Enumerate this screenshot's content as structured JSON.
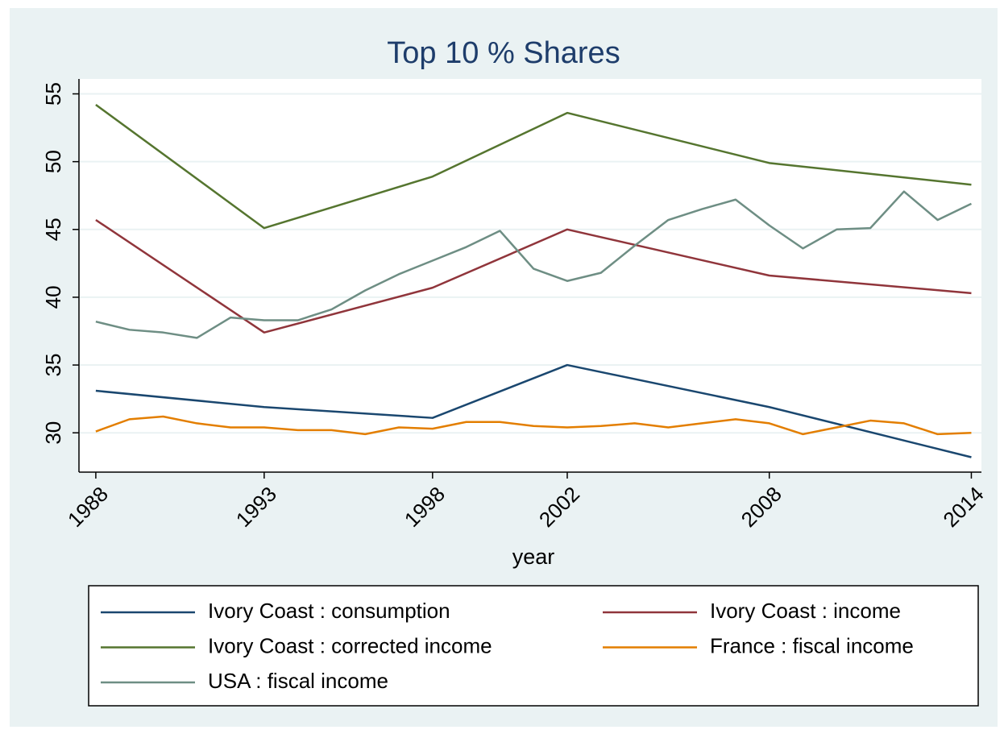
{
  "chart_data": {
    "type": "line",
    "title": "Top 10 % Shares",
    "x_label": "year",
    "xlim": [
      1987.5,
      2014.3
    ],
    "ylim": [
      27.1,
      56.1
    ],
    "xticks": [
      1988,
      1993,
      1998,
      2002,
      2008,
      2014
    ],
    "yticks": [
      30,
      35,
      40,
      45,
      50,
      55
    ],
    "grid": true,
    "series": [
      {
        "name": "Ivory Coast : consumption",
        "color": "#1a476f",
        "x": [
          1988,
          1993,
          1998,
          2002,
          2008,
          2014
        ],
        "values": [
          33.1,
          31.9,
          31.1,
          35.0,
          31.9,
          28.2
        ]
      },
      {
        "name": "Ivory Coast : income",
        "color": "#90353b",
        "x": [
          1988,
          1993,
          1998,
          2002,
          2008,
          2014
        ],
        "values": [
          45.7,
          37.4,
          40.7,
          45.0,
          41.6,
          40.3
        ]
      },
      {
        "name": "Ivory Coast : corrected income",
        "color": "#55752f",
        "x": [
          1988,
          1993,
          1998,
          2002,
          2008,
          2014
        ],
        "values": [
          54.2,
          45.1,
          48.9,
          53.6,
          49.9,
          48.3
        ]
      },
      {
        "name": "France : fiscal income",
        "color": "#e37e00",
        "x": [
          1988,
          1989,
          1990,
          1991,
          1992,
          1993,
          1994,
          1995,
          1996,
          1997,
          1998,
          1999,
          2000,
          2001,
          2002,
          2003,
          2004,
          2005,
          2006,
          2007,
          2008,
          2009,
          2010,
          2011,
          2012,
          2013,
          2014
        ],
        "values": [
          30.1,
          31.0,
          31.2,
          30.7,
          30.4,
          30.4,
          30.2,
          30.2,
          29.9,
          30.4,
          30.3,
          30.8,
          30.8,
          30.5,
          30.4,
          30.5,
          30.7,
          30.4,
          30.7,
          31.0,
          30.7,
          29.9,
          30.4,
          30.9,
          30.7,
          29.9,
          30.0
        ]
      },
      {
        "name": "USA : fiscal income",
        "color": "#6e8e84",
        "x": [
          1988,
          1989,
          1990,
          1991,
          1992,
          1993,
          1994,
          1995,
          1996,
          1997,
          1998,
          1999,
          2000,
          2001,
          2002,
          2003,
          2004,
          2005,
          2006,
          2007,
          2008,
          2009,
          2010,
          2011,
          2012,
          2013,
          2014
        ],
        "values": [
          38.2,
          37.6,
          37.4,
          37.0,
          38.5,
          38.3,
          38.3,
          39.1,
          40.5,
          41.7,
          42.7,
          43.7,
          44.9,
          42.1,
          41.2,
          41.8,
          43.8,
          45.7,
          46.5,
          47.2,
          45.3,
          43.6,
          45.0,
          45.1,
          47.8,
          45.7,
          46.9
        ]
      }
    ]
  }
}
